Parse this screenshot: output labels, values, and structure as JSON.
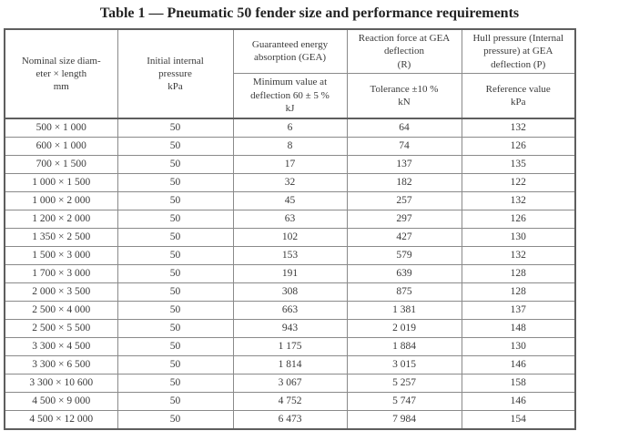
{
  "title": "Table 1 — Pneumatic 50 fender size and performance requirements",
  "table": {
    "columns": [
      {
        "header": "Nominal size diam-\neter × length\nmm",
        "subheader": null
      },
      {
        "header": "Initial internal\npressure\nkPa",
        "subheader": null
      },
      {
        "header": "Guaranteed energy\nabsorption (GEA)",
        "subheader": "Minimum value at\ndeflection 60 ± 5 %\nkJ"
      },
      {
        "header": "Reaction force at GEA\ndeflection\n(R)",
        "subheader": "Tolerance ±10 %\nkN"
      },
      {
        "header": "Hull pressure (Internal\npressure) at GEA\ndeflection (P)",
        "subheader": "Reference value\nkPa"
      }
    ],
    "rows": [
      [
        "500 × 1 000",
        "50",
        "6",
        "64",
        "132"
      ],
      [
        "600 × 1 000",
        "50",
        "8",
        "74",
        "126"
      ],
      [
        "700 × 1 500",
        "50",
        "17",
        "137",
        "135"
      ],
      [
        "1 000 × 1 500",
        "50",
        "32",
        "182",
        "122"
      ],
      [
        "1 000 × 2 000",
        "50",
        "45",
        "257",
        "132"
      ],
      [
        "1 200 × 2 000",
        "50",
        "63",
        "297",
        "126"
      ],
      [
        "1 350 × 2 500",
        "50",
        "102",
        "427",
        "130"
      ],
      [
        "1 500 × 3 000",
        "50",
        "153",
        "579",
        "132"
      ],
      [
        "1 700 × 3 000",
        "50",
        "191",
        "639",
        "128"
      ],
      [
        "2 000 × 3 500",
        "50",
        "308",
        "875",
        "128"
      ],
      [
        "2 500 × 4 000",
        "50",
        "663",
        "1 381",
        "137"
      ],
      [
        "2 500 × 5 500",
        "50",
        "943",
        "2 019",
        "148"
      ],
      [
        "3 300 × 4 500",
        "50",
        "1 175",
        "1 884",
        "130"
      ],
      [
        "3 300 × 6 500",
        "50",
        "1 814",
        "3 015",
        "146"
      ],
      [
        "3 300 × 10 600",
        "50",
        "3 067",
        "5 257",
        "158"
      ],
      [
        "4 500 × 9 000",
        "50",
        "4 752",
        "5 747",
        "146"
      ],
      [
        "4 500 × 12 000",
        "50",
        "6 473",
        "7 984",
        "154"
      ]
    ]
  },
  "colors": {
    "text": "#3a3a3a",
    "border_inner": "#8a8a8a",
    "border_outer": "#5e5e5e",
    "background": "#ffffff"
  }
}
